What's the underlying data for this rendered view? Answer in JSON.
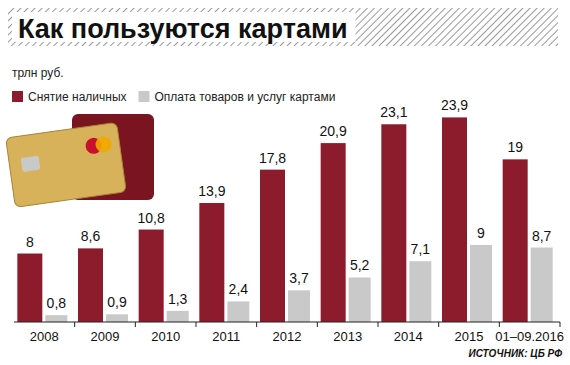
{
  "chart_data": {
    "type": "bar",
    "title": "Как пользуются картами",
    "y_label": "трлн руб.",
    "source": "ИСТОЧНИК: ЦБ РФ",
    "categories": [
      "2008",
      "2009",
      "2010",
      "2011",
      "2012",
      "2013",
      "2014",
      "2015",
      "01–09.2016"
    ],
    "series": [
      {
        "name": "Снятие наличных",
        "color": "#8c1c2c",
        "values": [
          8,
          8.6,
          10.8,
          13.9,
          17.8,
          20.9,
          23.1,
          23.9,
          19
        ],
        "value_labels": [
          "8",
          "8,6",
          "10,8",
          "13,9",
          "17,8",
          "20,9",
          "23,1",
          "23,9",
          "19"
        ]
      },
      {
        "name": "Оплата товаров и услуг картами",
        "color": "#c9c9c9",
        "values": [
          0.8,
          0.9,
          1.3,
          2.4,
          3.7,
          5.2,
          7.1,
          9,
          8.7
        ],
        "value_labels": [
          "0,8",
          "0,9",
          "1,3",
          "2,4",
          "3,7",
          "5,2",
          "7,1",
          "9",
          "8,7"
        ]
      }
    ],
    "ylim": [
      0,
      25
    ],
    "data_labels": true,
    "tick_labels": "x",
    "legend": "top-left",
    "grid": false,
    "stacked": false
  }
}
